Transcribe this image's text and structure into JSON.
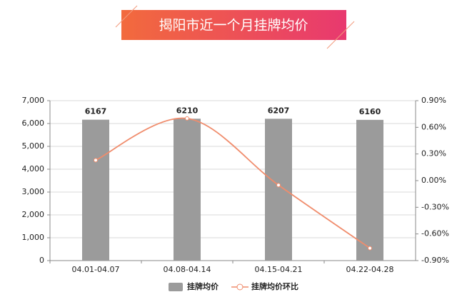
{
  "chart_data": {
    "type": "bar",
    "title": "揭阳市近一个月挂牌均价",
    "categories": [
      "04.01-04.07",
      "04.08-04.14",
      "04.15-04.21",
      "04.22-04.28"
    ],
    "series": [
      {
        "name": "挂牌均价",
        "type": "bar",
        "color": "#9b9b9b",
        "values": [
          6167,
          6210,
          6207,
          6160
        ]
      },
      {
        "name": "挂牌均价环比",
        "type": "line",
        "color": "#f08c6c",
        "axis": "y2",
        "values": [
          0.23,
          0.7,
          -0.05,
          -0.76
        ]
      }
    ],
    "ylim": [
      0,
      7000
    ],
    "yticks": [
      0,
      {
        "value": 1000,
        "label": "1,000"
      },
      {
        "value": 2000,
        "label": "2,000"
      },
      {
        "value": 3000,
        "label": "3,000"
      },
      {
        "value": 4000,
        "label": "4,000"
      },
      {
        "value": 5000,
        "label": "5,000"
      },
      {
        "value": 6000,
        "label": "6,000"
      },
      {
        "value": 7000,
        "label": "7,000"
      }
    ],
    "y2lim": [
      -0.9,
      0.9
    ],
    "y2ticks": [
      {
        "value": -0.9,
        "label": "-0.90%"
      },
      {
        "value": -0.6,
        "label": "-0.60%"
      },
      {
        "value": -0.3,
        "label": "-0.30%"
      },
      {
        "value": 0,
        "label": "0.00%"
      },
      {
        "value": 0.3,
        "label": "0.30%"
      },
      {
        "value": 0.6,
        "label": "0.60%"
      },
      {
        "value": 0.9,
        "label": "0.90%"
      }
    ],
    "grid": true,
    "legend": "bottom"
  }
}
